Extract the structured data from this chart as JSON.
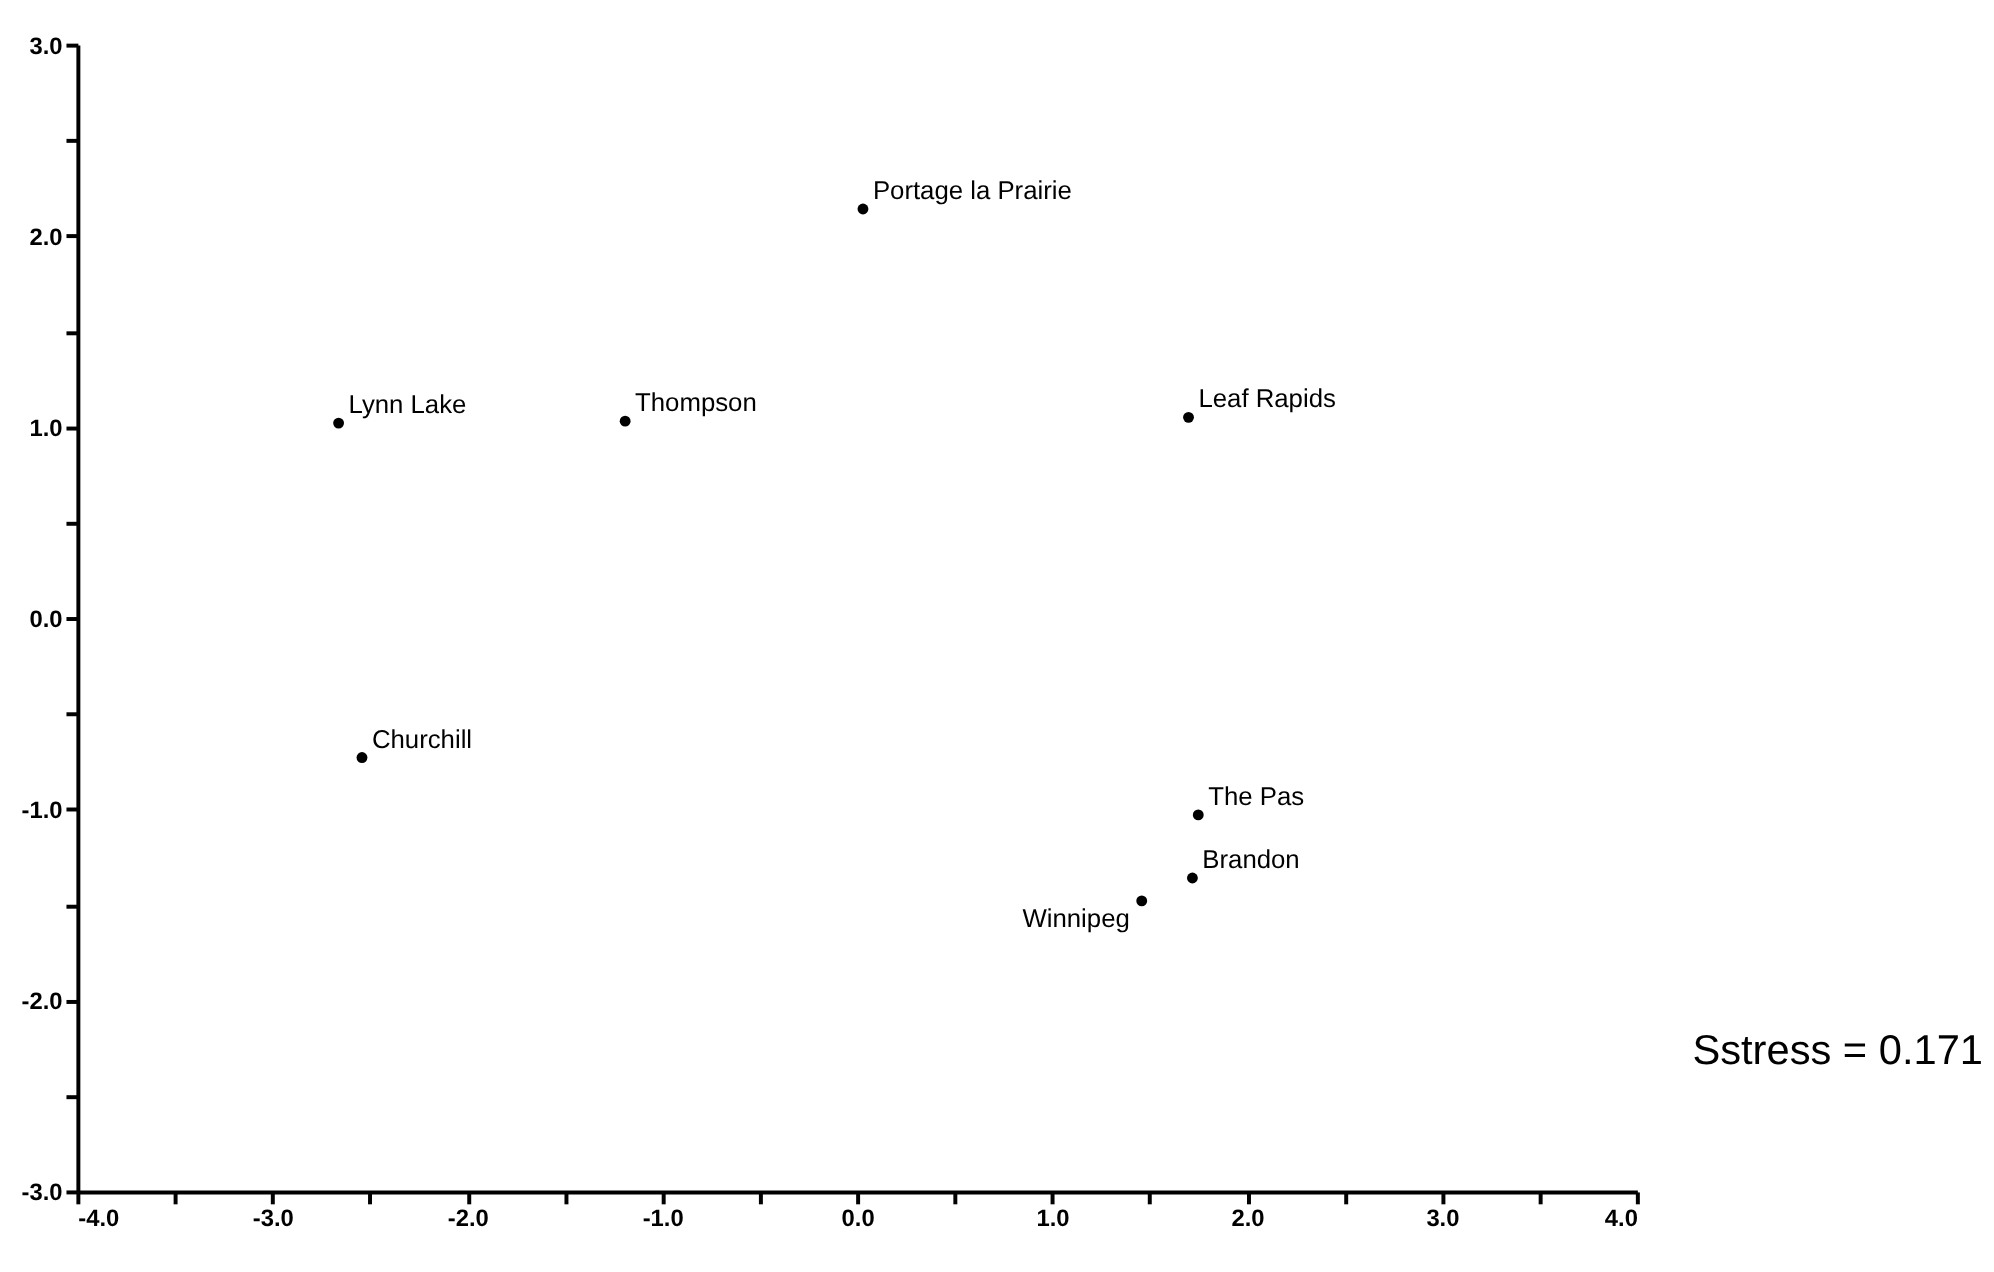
{
  "chart_data": {
    "type": "scatter",
    "x": [
      0.03,
      -2.66,
      -1.19,
      1.7,
      -2.54,
      1.75,
      1.72,
      1.46
    ],
    "series": [
      {
        "color": "#000000",
        "values": [
          2.14,
          1.02,
          1.03,
          1.05,
          -0.73,
          -1.03,
          -1.36,
          -1.48
        ]
      }
    ],
    "value_labels": [
      "Portage la Prairie",
      "Lynn Lake",
      "Thompson",
      "Leaf Rapids",
      "Churchill",
      "The Pas",
      "Brandon",
      "Winnipeg"
    ],
    "annotations": [
      "Sstress = 0.171"
    ],
    "marker": "circle",
    "grid": false,
    "xlim": [
      -4,
      4
    ],
    "ylim": [
      -3,
      3
    ],
    "xticks": [
      {
        "value": -4,
        "label": "-4.0"
      },
      {
        "value": -3.5,
        "label": null
      },
      {
        "value": -3,
        "label": "-3.0"
      },
      {
        "value": -2.5,
        "label": null
      },
      {
        "value": -2,
        "label": "-2.0"
      },
      {
        "value": -1.5,
        "label": null
      },
      {
        "value": -1,
        "label": "-1.0"
      },
      {
        "value": -0.5,
        "label": null
      },
      {
        "value": 0,
        "label": "0.0"
      },
      {
        "value": 0.5,
        "label": null
      },
      {
        "value": 1,
        "label": "1.0"
      },
      {
        "value": 1.5,
        "label": null
      },
      {
        "value": 2,
        "label": "2.0"
      },
      {
        "value": 2.5,
        "label": null
      },
      {
        "value": 3,
        "label": "3.0"
      },
      {
        "value": 3.5,
        "label": null
      },
      {
        "value": 4,
        "label": "4.0"
      }
    ],
    "yticks": [
      {
        "value": -3,
        "label": "-3.0"
      },
      {
        "value": -2.5,
        "label": null
      },
      {
        "value": -2,
        "label": "-2.0"
      },
      {
        "value": -1.5,
        "label": null
      },
      {
        "value": -1,
        "label": "-1.0"
      },
      {
        "value": -0.5,
        "label": null
      },
      {
        "value": 0,
        "label": "0.0"
      },
      {
        "value": 0.5,
        "label": null
      },
      {
        "value": 1,
        "label": "1.0"
      },
      {
        "value": 1.5,
        "label": null
      },
      {
        "value": 2,
        "label": "2.0"
      },
      {
        "value": 2.5,
        "label": null
      },
      {
        "value": 3,
        "label": "3.0"
      }
    ]
  }
}
